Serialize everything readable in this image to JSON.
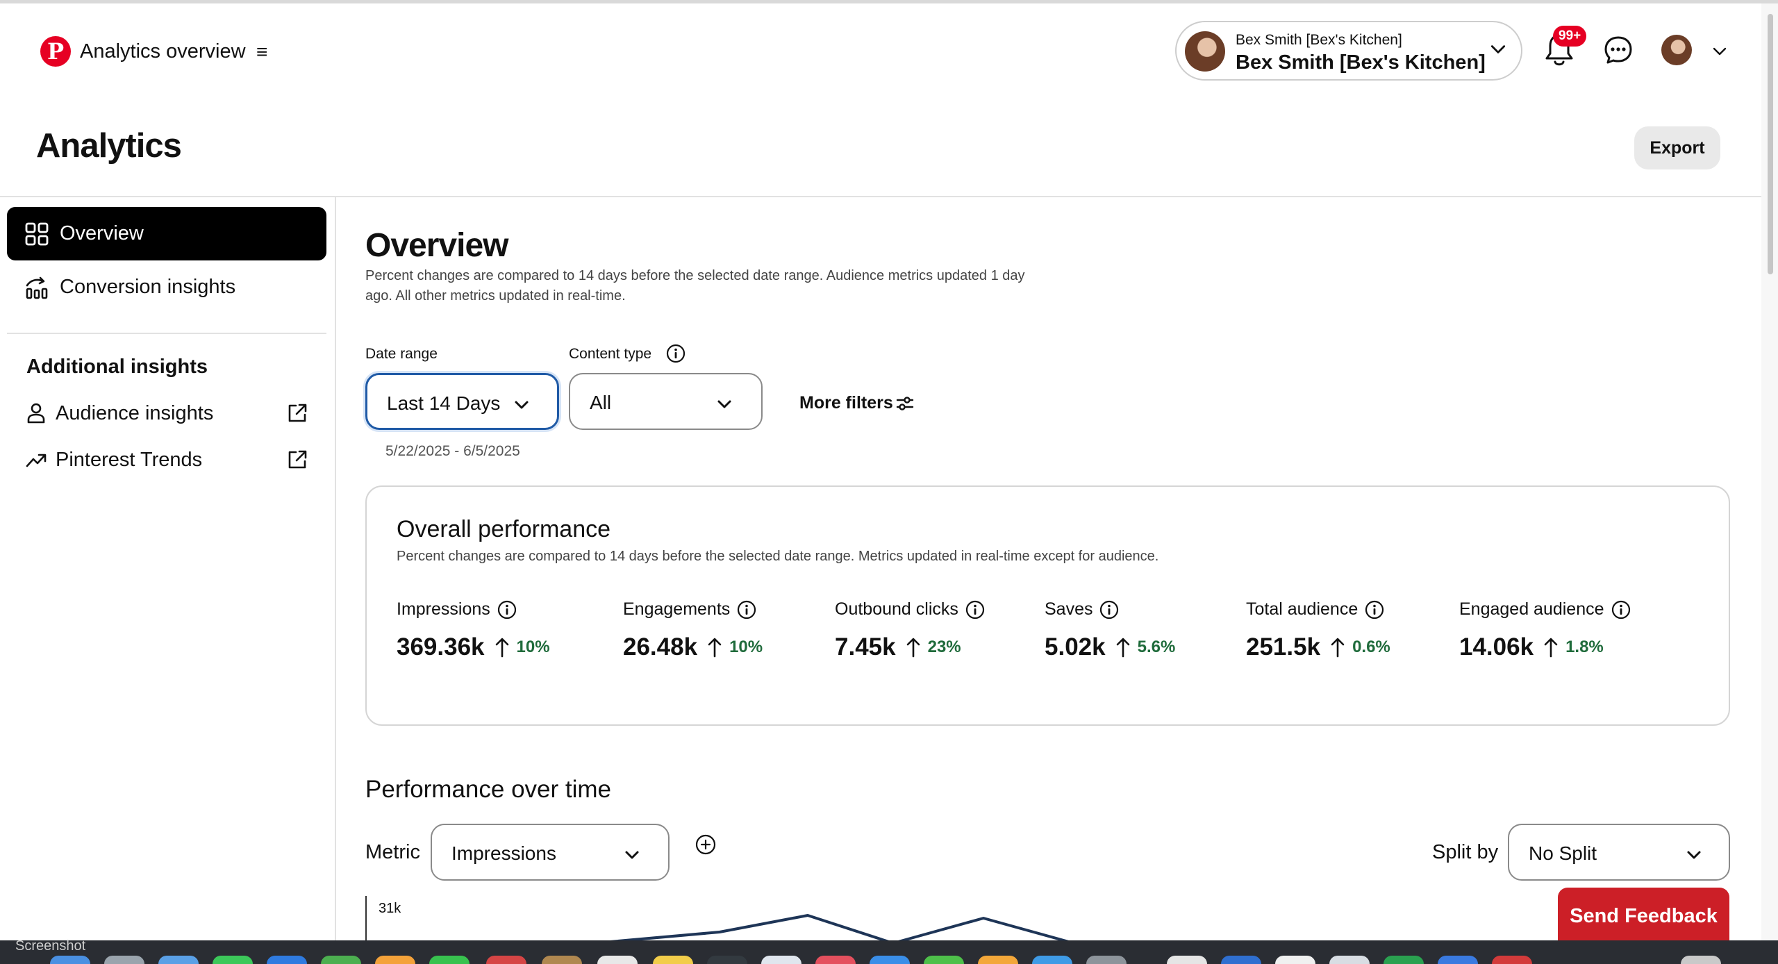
{
  "header": {
    "logo_letter": "P",
    "app_title": "Analytics overview",
    "account_subtitle": "Bex Smith [Bex's Kitchen]",
    "account_name": "Bex Smith [Bex's Kitchen]",
    "notification_badge": "99+"
  },
  "page": {
    "title": "Analytics",
    "export_label": "Export"
  },
  "sidebar": {
    "items": [
      {
        "label": "Overview",
        "icon": "grid-icon"
      },
      {
        "label": "Conversion insights",
        "icon": "conversion-chart-icon"
      }
    ],
    "additional_heading": "Additional insights",
    "external_items": [
      {
        "label": "Audience insights",
        "icon": "person-icon"
      },
      {
        "label": "Pinterest Trends",
        "icon": "trend-icon"
      }
    ]
  },
  "overview": {
    "title": "Overview",
    "description": "Percent changes are compared to 14 days before the selected date range. Audience metrics updated 1 day ago. All other metrics updated in real-time.",
    "filters": {
      "date_range_label": "Date range",
      "date_range_value": "Last 14 Days",
      "date_range_dates": "5/22/2025 - 6/5/2025",
      "content_type_label": "Content type",
      "content_type_value": "All",
      "more_filters_label": "More filters"
    }
  },
  "performance": {
    "title": "Overall performance",
    "description": "Percent changes are compared to 14 days before the selected date range. Metrics updated in real-time except for audience.",
    "metrics": [
      {
        "label": "Impressions",
        "value": "369.36k",
        "change": "10%"
      },
      {
        "label": "Engagements",
        "value": "26.48k",
        "change": "10%"
      },
      {
        "label": "Outbound clicks",
        "value": "7.45k",
        "change": "23%"
      },
      {
        "label": "Saves",
        "value": "5.02k",
        "change": "5.6%"
      },
      {
        "label": "Total audience",
        "value": "251.5k",
        "change": "0.6%"
      },
      {
        "label": "Engaged audience",
        "value": "14.06k",
        "change": "1.8%"
      }
    ],
    "positive_color": "#1f6b3b"
  },
  "performance_over_time": {
    "title": "Performance over time",
    "metric_label": "Metric",
    "metric_value": "Impressions",
    "split_label": "Split by",
    "split_value": "No Split",
    "y_tick_top": "31k"
  },
  "feedback_label": "Send Feedback",
  "dock_label": "Screenshot",
  "colors": {
    "brand": "#e60023",
    "focus_border": "#1f5aa6",
    "feedback": "#cc1f27",
    "chart_line": "#1e3557"
  }
}
